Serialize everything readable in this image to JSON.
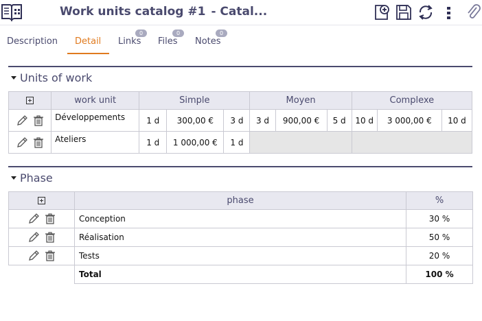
{
  "header": {
    "title": "Work units catalog  #1",
    "subtitle": "- Catal...",
    "icons": [
      "catalog-app-icon",
      "new-icon",
      "save-icon",
      "refresh-icon",
      "more-icon",
      "attach-icon"
    ]
  },
  "tabs": [
    {
      "label": "Description",
      "badge": null
    },
    {
      "label": "Detail",
      "badge": null,
      "active": true
    },
    {
      "label": "Links",
      "badge": "0"
    },
    {
      "label": "Files",
      "badge": "0"
    },
    {
      "label": "Notes",
      "badge": "0"
    }
  ],
  "units_section": {
    "title": "Units of work",
    "headers": {
      "work_unit": "work unit",
      "simple": "Simple",
      "moyen": "Moyen",
      "complexe": "Complexe"
    },
    "rows": [
      {
        "name": "Développements",
        "simple": [
          "1 d",
          "300,00 €",
          "3 d"
        ],
        "moyen": [
          "3 d",
          "900,00 €",
          "5 d"
        ],
        "complexe": [
          "10 d",
          "3 000,00 €",
          "10 d"
        ]
      },
      {
        "name": "Ateliers",
        "simple": [
          "1 d",
          "1 000,00 €",
          "1 d"
        ],
        "moyen": null,
        "complexe": null
      }
    ]
  },
  "phase_section": {
    "title": "Phase",
    "headers": {
      "phase": "phase",
      "pct": "%"
    },
    "rows": [
      {
        "name": "Conception",
        "pct": "30 %"
      },
      {
        "name": "Réalisation",
        "pct": "50 %"
      },
      {
        "name": "Tests",
        "pct": "20 %"
      }
    ],
    "total": {
      "label": "Total",
      "pct": "100 %"
    }
  },
  "colors": {
    "accent": "#e07a1e",
    "primary": "#4a4a6e",
    "header_bg": "#e8e8f0",
    "badge": "#a9aabf"
  }
}
